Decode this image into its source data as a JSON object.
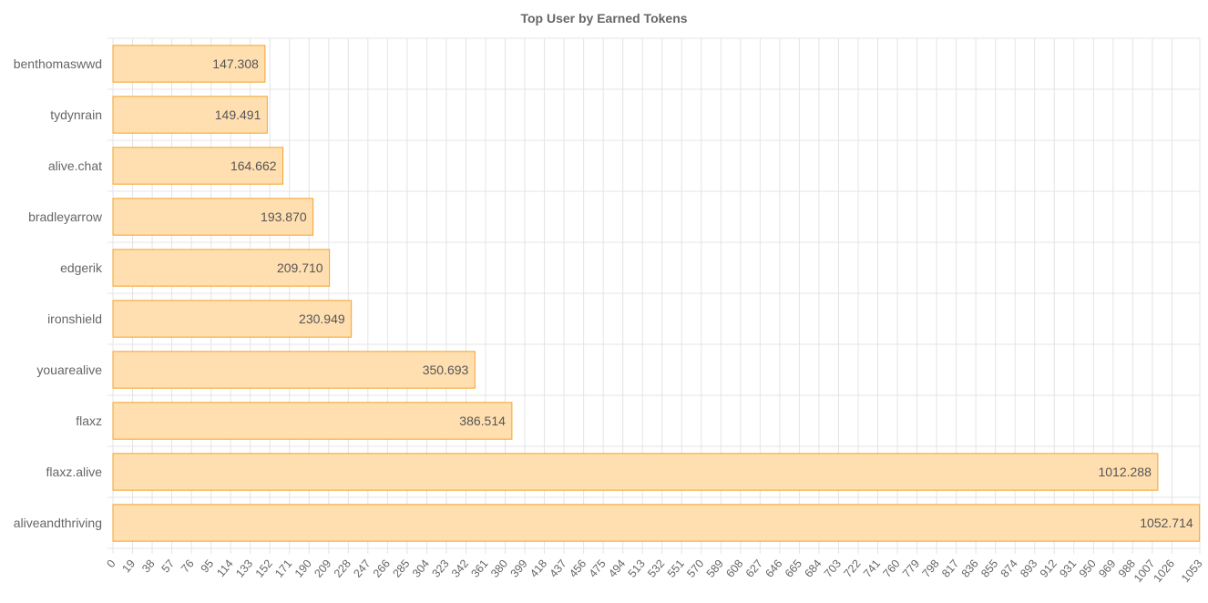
{
  "chart_data": {
    "type": "bar",
    "orientation": "horizontal",
    "title": "Top User by Earned Tokens",
    "xlabel": "",
    "ylabel": "",
    "categories": [
      "benthomaswwd",
      "tydynrain",
      "alive.chat",
      "bradleyarrow",
      "edgerik",
      "ironshield",
      "youarealive",
      "flaxz",
      "flaxz.alive",
      "aliveandthriving"
    ],
    "values": [
      147.308,
      149.491,
      164.662,
      193.87,
      209.71,
      230.949,
      350.693,
      386.514,
      1012.288,
      1052.714
    ],
    "value_labels": [
      "147.308",
      "149.491",
      "164.662",
      "193.870",
      "209.710",
      "230.949",
      "350.693",
      "386.514",
      "1012.288",
      "1052.714"
    ],
    "xlim": [
      0,
      1053
    ],
    "xticks": [
      "0",
      "19",
      "38",
      "57",
      "76",
      "95",
      "114",
      "133",
      "152",
      "171",
      "190",
      "209",
      "228",
      "247",
      "266",
      "285",
      "304",
      "323",
      "342",
      "361",
      "380",
      "399",
      "418",
      "437",
      "456",
      "475",
      "494",
      "513",
      "532",
      "551",
      "570",
      "589",
      "608",
      "627",
      "646",
      "665",
      "684",
      "703",
      "722",
      "741",
      "760",
      "779",
      "798",
      "817",
      "836",
      "855",
      "874",
      "893",
      "912",
      "931",
      "950",
      "969",
      "988",
      "1007",
      "1026",
      "1053"
    ],
    "grid": true,
    "legend": "none",
    "colors": {
      "bar_fill": "#ffdfb0",
      "bar_stroke": "#f5a32a",
      "grid": "#e4e4e4"
    }
  }
}
